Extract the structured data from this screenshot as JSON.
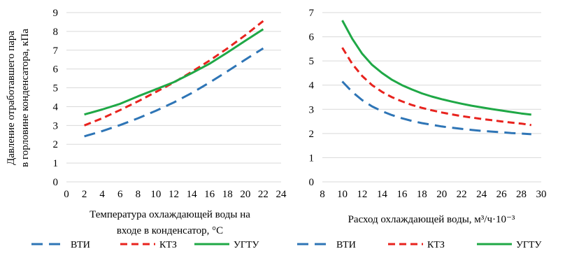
{
  "chart_data": [
    {
      "type": "line",
      "ylabel": [
        "Давление отработавшего пара",
        "в горловине конденсатора, кПа"
      ],
      "xlabel": [
        "Температура охлаждающей воды на",
        "входе в конденсатор, °C"
      ],
      "xlim": [
        0,
        24
      ],
      "ylim": [
        0,
        9
      ],
      "xticks": [
        0,
        2,
        4,
        6,
        8,
        10,
        12,
        14,
        16,
        18,
        20,
        22,
        24
      ],
      "yticks": [
        0,
        1,
        2,
        3,
        4,
        5,
        6,
        7,
        8,
        9
      ],
      "grid": "horizontal",
      "legend": "bottom",
      "series": [
        {
          "name": "ВТИ",
          "color": "#2E75B6",
          "dash": "long-dash",
          "x": [
            2,
            4,
            6,
            8,
            10,
            12,
            14,
            16,
            18,
            20,
            22
          ],
          "y": [
            2.42,
            2.7,
            3.02,
            3.38,
            3.78,
            4.22,
            4.72,
            5.28,
            5.88,
            6.5,
            7.1
          ]
        },
        {
          "name": "КТЗ",
          "color": "#E8231E",
          "dash": "dash",
          "x": [
            2,
            4,
            6,
            8,
            10,
            12,
            14,
            16,
            18,
            20,
            22
          ],
          "y": [
            3.0,
            3.38,
            3.82,
            4.28,
            4.78,
            5.28,
            5.85,
            6.45,
            7.1,
            7.8,
            8.55
          ]
        },
        {
          "name": "УГТУ",
          "color": "#1FA846",
          "dash": "solid",
          "x": [
            2,
            4,
            6,
            8,
            10,
            12,
            14,
            16,
            18,
            20,
            22
          ],
          "y": [
            3.58,
            3.85,
            4.15,
            4.55,
            4.92,
            5.3,
            5.78,
            6.28,
            6.88,
            7.5,
            8.12
          ]
        }
      ]
    },
    {
      "type": "line",
      "xlabel": "Расход охлаждающей воды, м³/ч·10⁻³",
      "xlim": [
        8,
        30
      ],
      "ylim": [
        0,
        7
      ],
      "xticks": [
        8,
        10,
        12,
        14,
        16,
        18,
        20,
        22,
        24,
        26,
        28,
        30
      ],
      "yticks": [
        0,
        1,
        2,
        3,
        4,
        5,
        6,
        7
      ],
      "grid": "horizontal",
      "legend": "bottom",
      "series": [
        {
          "name": "ВТИ",
          "color": "#2E75B6",
          "dash": "long-dash",
          "x": [
            10,
            11,
            12,
            13,
            14,
            15,
            16,
            17,
            18,
            19,
            20,
            21,
            22,
            23,
            24,
            25,
            26,
            27,
            28,
            29
          ],
          "y": [
            4.15,
            3.72,
            3.38,
            3.12,
            2.92,
            2.76,
            2.63,
            2.52,
            2.43,
            2.36,
            2.29,
            2.24,
            2.19,
            2.15,
            2.11,
            2.08,
            2.05,
            2.02,
            2.0,
            1.97
          ]
        },
        {
          "name": "КТЗ",
          "color": "#E8231E",
          "dash": "dash",
          "x": [
            10,
            11,
            12,
            13,
            14,
            15,
            16,
            17,
            18,
            19,
            20,
            21,
            22,
            23,
            24,
            25,
            26,
            27,
            28,
            29
          ],
          "y": [
            5.55,
            4.88,
            4.38,
            4.0,
            3.72,
            3.5,
            3.33,
            3.18,
            3.06,
            2.96,
            2.87,
            2.79,
            2.72,
            2.66,
            2.6,
            2.55,
            2.5,
            2.45,
            2.41,
            2.35
          ]
        },
        {
          "name": "УГТУ",
          "color": "#1FA846",
          "dash": "solid",
          "x": [
            10,
            11,
            12,
            13,
            14,
            15,
            16,
            17,
            18,
            19,
            20,
            21,
            22,
            23,
            24,
            25,
            26,
            27,
            28,
            29
          ],
          "y": [
            6.68,
            5.92,
            5.3,
            4.84,
            4.5,
            4.22,
            4.0,
            3.82,
            3.66,
            3.53,
            3.42,
            3.32,
            3.23,
            3.15,
            3.08,
            3.01,
            2.95,
            2.89,
            2.83,
            2.78
          ]
        }
      ]
    }
  ]
}
